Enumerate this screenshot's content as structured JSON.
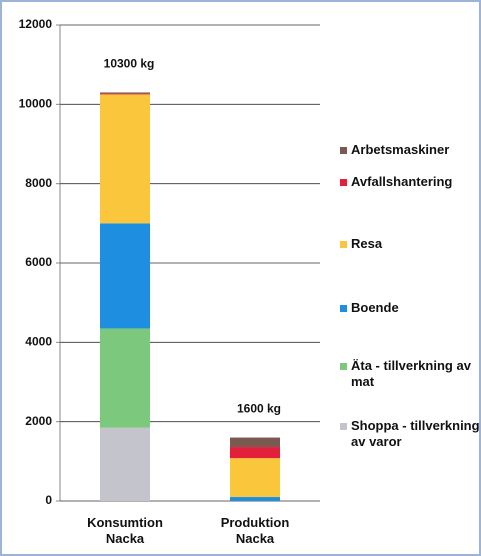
{
  "chart_data": {
    "type": "stacked_bar",
    "categories": [
      "Konsumtion Nacka",
      "Produktion Nacka"
    ],
    "series": [
      {
        "name": "Shoppa - tillverkning av varor",
        "color": "#c4c4cc",
        "values": [
          1850,
          0
        ]
      },
      {
        "name": "Äta - tillverkning av mat",
        "color": "#7cc87c",
        "values": [
          2500,
          0
        ]
      },
      {
        "name": "Boende",
        "color": "#1e8ee0",
        "values": [
          2650,
          100
        ]
      },
      {
        "name": "Resa",
        "color": "#f9c63c",
        "values": [
          3250,
          980
        ]
      },
      {
        "name": "Avfallshantering",
        "color": "#e2203c",
        "values": [
          20,
          280
        ]
      },
      {
        "name": "Arbetsmaskiner",
        "color": "#7a5a50",
        "values": [
          30,
          240
        ]
      }
    ],
    "annotations": [
      "10300 kg",
      "1600 kg"
    ],
    "ylim": [
      0,
      12000
    ],
    "yticks": [
      0,
      2000,
      4000,
      6000,
      8000,
      10000,
      12000
    ],
    "grid": true
  }
}
